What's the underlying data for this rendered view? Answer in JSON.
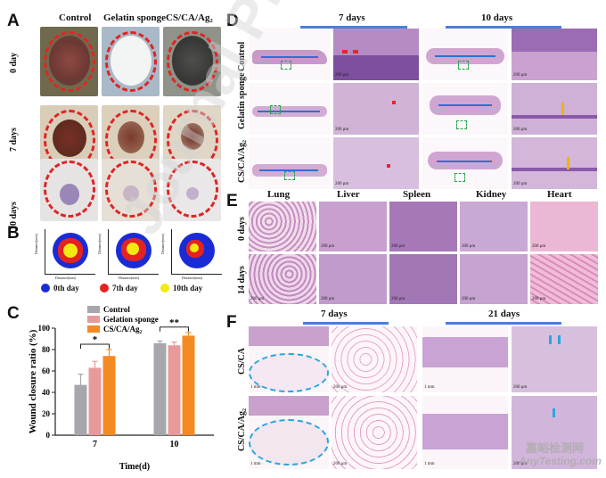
{
  "panel_labels": {
    "A": "A",
    "B": "B",
    "C": "C",
    "D": "D",
    "E": "E",
    "F": "F"
  },
  "panelA": {
    "columns": [
      "Control",
      "Gelatin sponge",
      "CS/CA/Ag₂"
    ],
    "rows": [
      "0 day",
      "7 days",
      "10 days"
    ]
  },
  "panelB": {
    "axis_y": "Distance(mm)",
    "axis_x": "Distance(mm)",
    "legend": [
      {
        "label": "0th day",
        "color": "#1a2bd6"
      },
      {
        "label": "7th day",
        "color": "#e52222"
      },
      {
        "label": "10th day",
        "color": "#f2ea12"
      }
    ]
  },
  "panelD": {
    "time_headers": [
      "7 days",
      "10 days"
    ],
    "rows": [
      "Control",
      "Gelatin sponge",
      "CS/CA/Ag₂"
    ],
    "scale": "200 μm"
  },
  "panelE": {
    "organs": [
      "Lung",
      "Liver",
      "Spleen",
      "Kidney",
      "Heart"
    ],
    "rows": [
      "0 days",
      "14 days"
    ],
    "scale": "200 μm"
  },
  "panelF": {
    "time_headers": [
      "7 days",
      "21 days"
    ],
    "rows": [
      "CS/CA",
      "CS/CA/Ag₂"
    ],
    "scale_small": "1 mm",
    "scale": "200 μm"
  },
  "watermark": {
    "text": "Journal Pre-proof",
    "logo": "嘉峪检测网",
    "site": "AnyTesting.com"
  },
  "chart_data": {
    "type": "bar",
    "ylabel": "Wound closure ratio (%)",
    "xlabel": "Time(d)",
    "categories": [
      "7",
      "10"
    ],
    "ylim": [
      0,
      100
    ],
    "yticks": [
      0,
      20,
      40,
      60,
      80,
      100
    ],
    "series": [
      {
        "name": "Control",
        "color": "#a6a6ab",
        "values": [
          47,
          86
        ],
        "errors": [
          10,
          2
        ]
      },
      {
        "name": "Gelation sponge",
        "color": "#e89a9b",
        "values": [
          63,
          84
        ],
        "errors": [
          6,
          3
        ]
      },
      {
        "name": "CS/CA/Ag₂",
        "color": "#f48a22",
        "values": [
          74,
          93
        ],
        "errors": [
          6,
          3
        ]
      }
    ],
    "significance": [
      {
        "label": "*",
        "group": 0
      },
      {
        "label": "**",
        "group": 1
      }
    ]
  }
}
